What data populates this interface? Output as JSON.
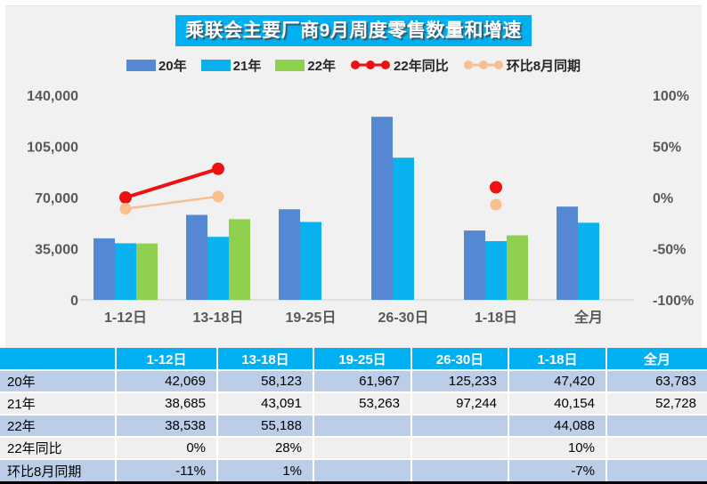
{
  "title": {
    "text": "乘联会主要厂商9月周度零售数量和增速",
    "bg_color": "#00b0f0",
    "text_color": "#ffffff"
  },
  "legend": {
    "items": [
      {
        "label": "20年",
        "marker": "swatch",
        "color": "#5588d2"
      },
      {
        "label": "21年",
        "marker": "swatch",
        "color": "#0ab1ef"
      },
      {
        "label": "22年",
        "marker": "swatch",
        "color": "#8fd04e"
      },
      {
        "label": "22年同比",
        "marker": "line-dots",
        "color": "#ed1111"
      },
      {
        "label": "环比8月同期",
        "marker": "line-dots",
        "color": "#f8c091"
      }
    ]
  },
  "chart_data": {
    "type": "bar",
    "subtype": "clustered bars with two percentage line series on secondary axis",
    "categories": [
      "1-12日",
      "13-18日",
      "19-25日",
      "26-30日",
      "1-18日",
      "全月"
    ],
    "series": [
      {
        "name": "20年",
        "kind": "bar",
        "color": "#5588d2",
        "values": [
          42069,
          58123,
          61967,
          125233,
          47420,
          63783
        ]
      },
      {
        "name": "21年",
        "kind": "bar",
        "color": "#0ab1ef",
        "values": [
          38685,
          43091,
          53263,
          97244,
          40154,
          52728
        ]
      },
      {
        "name": "22年",
        "kind": "bar",
        "color": "#8fd04e",
        "values": [
          38538,
          55188,
          null,
          null,
          44088,
          null
        ]
      },
      {
        "name": "22年同比",
        "kind": "line",
        "axis": "right",
        "color": "#ed1111",
        "values": [
          0,
          28,
          null,
          null,
          10,
          null
        ]
      },
      {
        "name": "环比8月同期",
        "kind": "line",
        "axis": "right",
        "color": "#f8c091",
        "values": [
          -11,
          1,
          null,
          null,
          -7,
          null
        ]
      }
    ],
    "left_axis": {
      "min": 0,
      "max": 140000,
      "tick_labels": [
        "0",
        "35,000",
        "70,000",
        "105,000",
        "140,000"
      ]
    },
    "right_axis": {
      "min": -100,
      "max": 100,
      "tick_labels": [
        "-100%",
        "-50%",
        "0%",
        "50%",
        "100%"
      ]
    },
    "grid": false,
    "legend_position": "top",
    "title": "乘联会主要厂商9月周度零售数量和增速"
  },
  "table": {
    "headers": [
      "",
      "1-12日",
      "13-18日",
      "19-25日",
      "26-30日",
      "1-18日",
      "全月"
    ],
    "rows": [
      {
        "label": "20年",
        "values": [
          "42,069",
          "58,123",
          "61,967",
          "125,233",
          "47,420",
          "63,783"
        ]
      },
      {
        "label": "21年",
        "values": [
          "38,685",
          "43,091",
          "53,263",
          "97,244",
          "40,154",
          "52,728"
        ]
      },
      {
        "label": "22年",
        "values": [
          "38,538",
          "55,188",
          "",
          "",
          "44,088",
          ""
        ]
      },
      {
        "label": "22年同比",
        "values": [
          "0%",
          "28%",
          "",
          "",
          "10%",
          ""
        ]
      },
      {
        "label": "环比8月同期",
        "values": [
          "-11%",
          "1%",
          "",
          "",
          "-7%",
          ""
        ]
      }
    ],
    "header_bg": "#00b0f0",
    "row_colors": [
      "#bccee7",
      "#efefef",
      "#bccee7",
      "#efefef",
      "#bccee7"
    ]
  },
  "colors": {
    "panel_bg": "#f1f1f2",
    "axis_text": "#595959",
    "axis_line": "#d9d9d9"
  }
}
